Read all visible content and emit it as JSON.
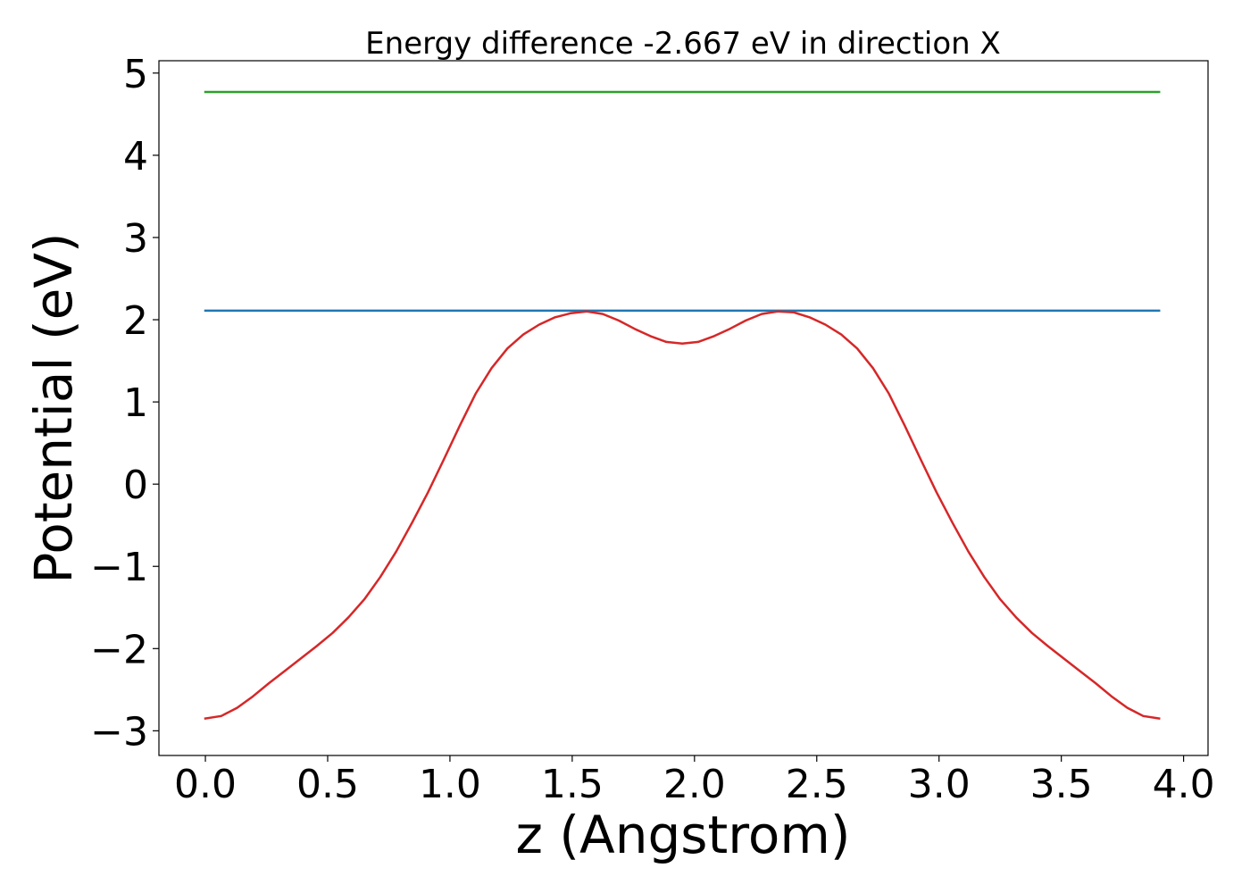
{
  "chart_data": {
    "type": "line",
    "title": "Energy difference -2.667 eV in direction X",
    "xlabel": "z (Angstrom)",
    "ylabel": "Potential (eV)",
    "xlim": [
      -0.19,
      4.1
    ],
    "ylim": [
      -3.3,
      5.15
    ],
    "xticks": [
      0.0,
      0.5,
      1.0,
      1.5,
      2.0,
      2.5,
      3.0,
      3.5,
      4.0
    ],
    "xtick_labels": [
      "0.0",
      "0.5",
      "1.0",
      "1.5",
      "2.0",
      "2.5",
      "3.0",
      "3.5",
      "4.0"
    ],
    "yticks": [
      -3,
      -2,
      -1,
      0,
      1,
      2,
      3,
      4,
      5
    ],
    "ytick_labels": [
      "−3",
      "−2",
      "−1",
      "0",
      "1",
      "2",
      "3",
      "4",
      "5"
    ],
    "grid": false,
    "series": [
      {
        "color": "#2ca02c",
        "x": [
          0.0,
          3.9
        ],
        "y": [
          4.77,
          4.77
        ]
      },
      {
        "color": "#1f77b4",
        "x": [
          0.0,
          3.9
        ],
        "y": [
          2.11,
          2.11
        ]
      },
      {
        "color": "#d62728",
        "x": [
          0.0,
          0.065,
          0.13,
          0.195,
          0.26,
          0.325,
          0.39,
          0.455,
          0.52,
          0.585,
          0.65,
          0.715,
          0.78,
          0.845,
          0.91,
          0.975,
          1.04,
          1.105,
          1.17,
          1.235,
          1.3,
          1.365,
          1.43,
          1.495,
          1.56,
          1.625,
          1.69,
          1.755,
          1.82,
          1.885,
          1.95,
          2.015,
          2.08,
          2.145,
          2.21,
          2.275,
          2.34,
          2.405,
          2.47,
          2.535,
          2.6,
          2.665,
          2.73,
          2.795,
          2.86,
          2.925,
          2.99,
          3.055,
          3.12,
          3.185,
          3.25,
          3.315,
          3.38,
          3.445,
          3.51,
          3.575,
          3.64,
          3.705,
          3.77,
          3.835,
          3.9
        ],
        "y": [
          -2.85,
          -2.82,
          -2.72,
          -2.58,
          -2.42,
          -2.27,
          -2.12,
          -1.97,
          -1.81,
          -1.62,
          -1.4,
          -1.13,
          -0.82,
          -0.47,
          -0.1,
          0.3,
          0.71,
          1.1,
          1.41,
          1.65,
          1.82,
          1.94,
          2.03,
          2.08,
          2.1,
          2.07,
          1.99,
          1.89,
          1.8,
          1.73,
          1.71,
          1.73,
          1.8,
          1.89,
          1.99,
          2.07,
          2.1,
          2.09,
          2.03,
          1.94,
          1.82,
          1.65,
          1.41,
          1.1,
          0.71,
          0.3,
          -0.1,
          -0.47,
          -0.82,
          -1.13,
          -1.4,
          -1.62,
          -1.81,
          -1.97,
          -2.12,
          -2.27,
          -2.42,
          -2.58,
          -2.72,
          -2.82,
          -2.85
        ]
      }
    ]
  }
}
